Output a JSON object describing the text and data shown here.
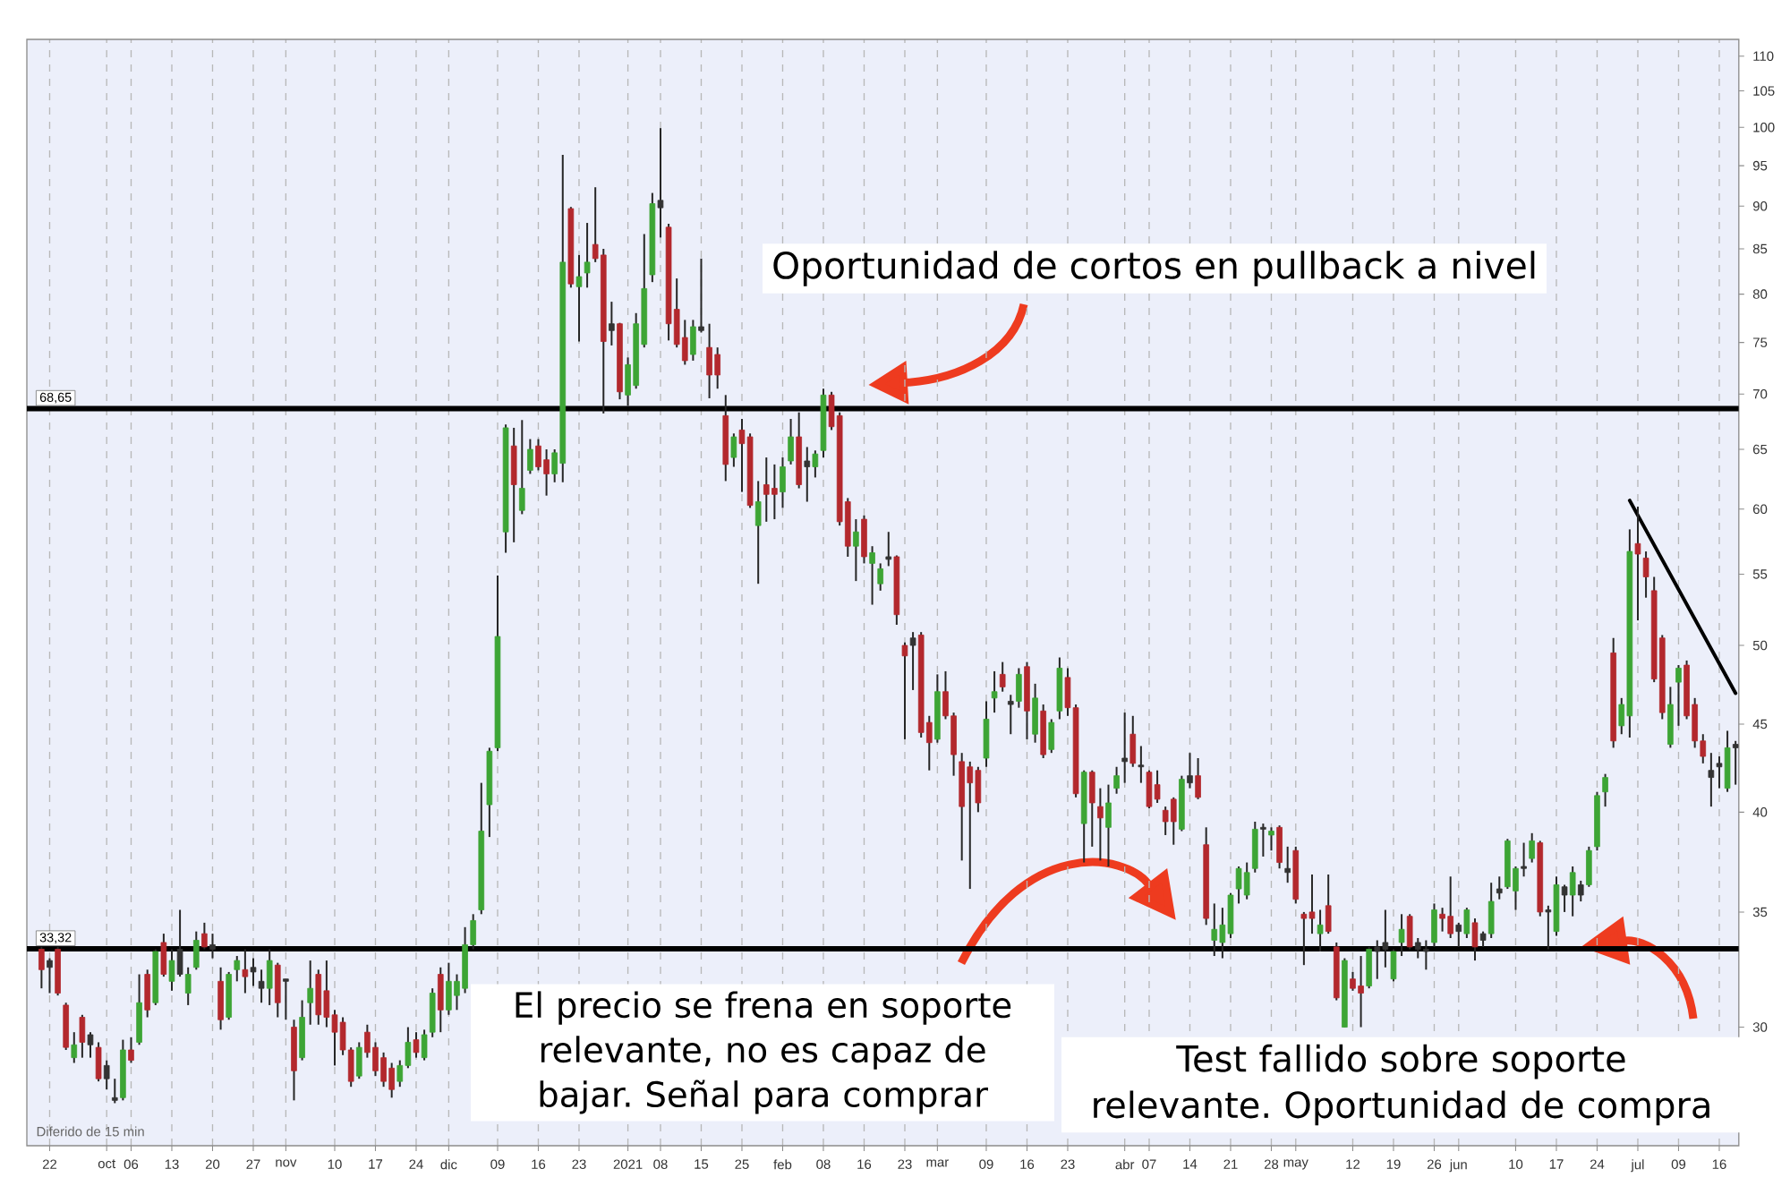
{
  "chart_data": {
    "type": "candlestick",
    "categories": [
      null,
      "22",
      null,
      null,
      null,
      null,
      null,
      null,
      "oct",
      null,
      null,
      "06",
      null,
      null,
      null,
      null,
      "13",
      null,
      null,
      null,
      null,
      "20",
      null,
      null,
      null,
      null,
      "27",
      null,
      null,
      null,
      "nov",
      null,
      null,
      null,
      null,
      null,
      "10",
      null,
      null,
      null,
      null,
      "17",
      null,
      null,
      null,
      null,
      "24",
      null,
      null,
      null,
      "dic",
      null,
      null,
      null,
      null,
      null,
      "09",
      null,
      null,
      null,
      null,
      "16",
      null,
      null,
      null,
      null,
      "23",
      null,
      null,
      null,
      null,
      null,
      "2021",
      null,
      null,
      null,
      "08",
      null,
      null,
      null,
      null,
      "15",
      null,
      null,
      null,
      null,
      "25",
      null,
      null,
      null,
      null,
      "feb",
      null,
      null,
      null,
      null,
      "08",
      null,
      null,
      null,
      null,
      "16",
      null,
      null,
      null,
      null,
      "23",
      null,
      null,
      null,
      "mar",
      null,
      null,
      null,
      null,
      null,
      "09",
      null,
      null,
      null,
      null,
      "16",
      null,
      null,
      null,
      null,
      "23",
      null,
      null,
      null,
      null,
      null,
      null,
      "abr",
      null,
      null,
      "07",
      null,
      null,
      null,
      null,
      "14",
      null,
      null,
      null,
      null,
      "21",
      null,
      null,
      null,
      null,
      "28",
      null,
      null,
      "may",
      null,
      null,
      null,
      null,
      null,
      null,
      "12",
      null,
      null,
      null,
      null,
      "19",
      null,
      null,
      null,
      null,
      "26",
      null,
      null,
      "jun",
      null,
      null,
      null,
      null,
      null,
      null,
      "10",
      null,
      null,
      null,
      null,
      "17",
      null,
      null,
      null,
      null,
      "24",
      null,
      null,
      null,
      null,
      "jul",
      null,
      null,
      null,
      null,
      "09",
      null,
      null,
      null,
      null,
      "16",
      null,
      null
    ],
    "ohlc": [
      [
        33.3,
        33.4,
        31.6,
        32.4
      ],
      [
        32.5,
        32.9,
        31.4,
        32.8
      ],
      [
        33.3,
        33.4,
        31.3,
        31.4
      ],
      [
        30.9,
        31.0,
        29.1,
        29.2
      ],
      [
        28.8,
        29.8,
        28.6,
        29.3
      ],
      [
        30.4,
        30.5,
        28.8,
        29.4
      ],
      [
        29.7,
        29.8,
        28.8,
        29.3
      ],
      [
        29.2,
        29.4,
        27.9,
        28.0
      ],
      [
        28.5,
        28.7,
        27.6,
        28.0
      ],
      [
        27.3,
        28.0,
        27.1,
        27.2
      ],
      [
        27.3,
        29.5,
        27.2,
        29.1
      ],
      [
        29.1,
        29.6,
        28.6,
        28.7
      ],
      [
        29.4,
        32.2,
        29.3,
        31.0
      ],
      [
        32.2,
        32.4,
        30.4,
        30.7
      ],
      [
        31.0,
        33.3,
        30.9,
        33.2
      ],
      [
        33.6,
        34.0,
        32.1,
        32.2
      ],
      [
        31.9,
        33.3,
        31.5,
        32.8
      ],
      [
        33.3,
        35.1,
        32.1,
        32.2
      ],
      [
        31.4,
        32.5,
        30.9,
        32.2
      ],
      [
        32.5,
        34.1,
        32.4,
        33.7
      ],
      [
        34.0,
        34.5,
        33.3,
        33.4
      ],
      [
        33.5,
        34.0,
        32.9,
        33.3
      ],
      [
        31.9,
        32.5,
        29.9,
        30.3
      ],
      [
        30.4,
        32.3,
        30.3,
        32.2
      ],
      [
        32.4,
        33.0,
        31.9,
        32.8
      ],
      [
        32.4,
        33.3,
        31.4,
        32.1
      ],
      [
        32.5,
        32.9,
        31.7,
        32.3
      ],
      [
        31.9,
        32.4,
        31.0,
        31.6
      ],
      [
        31.6,
        33.3,
        30.9,
        32.8
      ],
      [
        32.6,
        32.7,
        30.4,
        31.0
      ],
      [
        32.0,
        32.0,
        30.3,
        31.9
      ],
      [
        30.0,
        30.3,
        27.2,
        28.3
      ],
      [
        28.8,
        31.1,
        28.7,
        30.4
      ],
      [
        31.0,
        32.8,
        30.1,
        31.6
      ],
      [
        32.2,
        32.4,
        30.1,
        30.5
      ],
      [
        31.5,
        32.8,
        30.0,
        30.4
      ],
      [
        30.5,
        30.7,
        28.5,
        29.8
      ],
      [
        30.2,
        30.4,
        28.9,
        29.1
      ],
      [
        29.1,
        29.2,
        27.7,
        27.9
      ],
      [
        28.1,
        29.4,
        28.0,
        29.2
      ],
      [
        29.8,
        30.1,
        28.8,
        29.0
      ],
      [
        29.2,
        29.4,
        28.1,
        28.3
      ],
      [
        28.8,
        29.0,
        27.7,
        27.9
      ],
      [
        28.4,
        28.6,
        27.3,
        27.6
      ],
      [
        27.9,
        28.7,
        27.7,
        28.5
      ],
      [
        28.5,
        30.0,
        28.4,
        29.4
      ],
      [
        29.5,
        29.8,
        28.8,
        29.0
      ],
      [
        28.8,
        29.9,
        28.7,
        29.7
      ],
      [
        29.8,
        31.6,
        29.6,
        31.4
      ],
      [
        32.2,
        32.5,
        29.8,
        30.7
      ],
      [
        30.7,
        32.7,
        30.5,
        31.9
      ],
      [
        31.3,
        32.2,
        30.7,
        31.9
      ],
      [
        31.6,
        34.3,
        31.4,
        33.5
      ],
      [
        33.5,
        34.9,
        33.3,
        34.6
      ],
      [
        35.1,
        41.6,
        34.9,
        39.0
      ],
      [
        40.4,
        43.6,
        38.7,
        43.4
      ],
      [
        43.6,
        54.9,
        43.4,
        50.6
      ],
      [
        58.2,
        67.2,
        56.6,
        66.9
      ],
      [
        65.3,
        66.9,
        57.4,
        62.0
      ],
      [
        59.9,
        67.6,
        59.6,
        61.7
      ],
      [
        63.2,
        65.9,
        62.9,
        65.0
      ],
      [
        65.3,
        65.9,
        63.2,
        63.5
      ],
      [
        64.1,
        65.0,
        61.1,
        62.9
      ],
      [
        62.9,
        65.0,
        62.2,
        64.7
      ],
      [
        63.8,
        96.4,
        62.2,
        83.5
      ],
      [
        89.7,
        89.9,
        80.7,
        81.1
      ],
      [
        80.8,
        84.3,
        75.1,
        81.9
      ],
      [
        82.3,
        88.0,
        80.7,
        83.5
      ],
      [
        85.5,
        92.3,
        83.5,
        83.9
      ],
      [
        84.3,
        85.0,
        68.2,
        75.1
      ],
      [
        76.2,
        79.2,
        74.7,
        76.9
      ],
      [
        76.9,
        77.0,
        69.5,
        70.2
      ],
      [
        69.9,
        73.5,
        68.9,
        72.8
      ],
      [
        70.8,
        78.0,
        70.5,
        76.9
      ],
      [
        74.8,
        86.7,
        74.5,
        80.6
      ],
      [
        82.1,
        91.6,
        81.3,
        90.3
      ],
      [
        90.7,
        99.9,
        86.3,
        89.8
      ],
      [
        87.5,
        87.9,
        75.2,
        76.9
      ],
      [
        78.4,
        81.7,
        74.5,
        74.8
      ],
      [
        75.5,
        77.3,
        72.8,
        73.2
      ],
      [
        73.8,
        77.3,
        73.2,
        76.6
      ],
      [
        76.6,
        83.9,
        76.0,
        76.2
      ],
      [
        74.5,
        76.9,
        69.6,
        71.8
      ],
      [
        73.8,
        74.5,
        70.5,
        71.8
      ],
      [
        68.0,
        69.9,
        62.3,
        63.7
      ],
      [
        64.3,
        66.4,
        63.5,
        66.1
      ],
      [
        66.7,
        67.7,
        61.4,
        65.5
      ],
      [
        66.1,
        66.4,
        60.1,
        60.3
      ],
      [
        58.7,
        62.3,
        54.3,
        60.6
      ],
      [
        62.0,
        64.3,
        59.0,
        61.2
      ],
      [
        61.7,
        63.7,
        59.2,
        61.2
      ],
      [
        61.4,
        64.3,
        60.1,
        63.5
      ],
      [
        64.0,
        67.7,
        63.7,
        66.1
      ],
      [
        66.1,
        68.3,
        61.7,
        62.0
      ],
      [
        64.0,
        65.2,
        60.6,
        63.5
      ],
      [
        63.5,
        64.9,
        62.6,
        64.6
      ],
      [
        64.9,
        70.5,
        64.3,
        69.9
      ],
      [
        69.9,
        70.2,
        66.7,
        67.0
      ],
      [
        68.0,
        68.3,
        58.7,
        59.0
      ],
      [
        60.6,
        60.9,
        56.3,
        57.1
      ],
      [
        57.1,
        59.2,
        54.5,
        58.2
      ],
      [
        59.2,
        59.5,
        55.8,
        56.3
      ],
      [
        55.8,
        57.1,
        52.8,
        56.6
      ],
      [
        54.3,
        55.8,
        53.8,
        55.4
      ],
      [
        56.3,
        58.2,
        55.6,
        56.1
      ],
      [
        56.3,
        56.4,
        51.4,
        52.1
      ],
      [
        50.0,
        50.2,
        44.1,
        49.3
      ],
      [
        50.0,
        50.9,
        47.1,
        50.5
      ],
      [
        50.7,
        50.9,
        44.2,
        44.5
      ],
      [
        45.1,
        45.5,
        42.3,
        43.9
      ],
      [
        44.1,
        48.1,
        43.9,
        47.0
      ],
      [
        47.0,
        48.3,
        45.3,
        45.5
      ],
      [
        45.5,
        45.7,
        42.0,
        43.2
      ],
      [
        42.8,
        43.3,
        37.5,
        40.3
      ],
      [
        42.5,
        42.8,
        36.1,
        41.6
      ],
      [
        42.3,
        42.5,
        40.0,
        40.5
      ],
      [
        43.0,
        46.4,
        42.5,
        45.3
      ],
      [
        46.6,
        48.3,
        45.7,
        47.0
      ],
      [
        48.1,
        48.9,
        47.0,
        47.3
      ],
      [
        46.4,
        46.8,
        44.4,
        46.2
      ],
      [
        46.4,
        48.5,
        46.0,
        48.1
      ],
      [
        48.6,
        48.9,
        44.1,
        45.8
      ],
      [
        44.4,
        47.5,
        43.9,
        46.6
      ],
      [
        45.8,
        46.2,
        43.0,
        43.2
      ],
      [
        43.5,
        45.3,
        43.3,
        45.1
      ],
      [
        45.8,
        49.2,
        45.3,
        48.5
      ],
      [
        47.9,
        48.5,
        45.5,
        46.0
      ],
      [
        46.0,
        46.2,
        40.8,
        41.0
      ],
      [
        39.4,
        42.3,
        37.4,
        42.2
      ],
      [
        42.2,
        42.3,
        38.2,
        40.5
      ],
      [
        40.3,
        41.3,
        37.5,
        39.7
      ],
      [
        39.2,
        41.5,
        37.2,
        40.5
      ],
      [
        41.3,
        42.5,
        41.0,
        42.0
      ],
      [
        42.8,
        45.7,
        41.6,
        43.0
      ],
      [
        44.4,
        45.5,
        42.5,
        42.7
      ],
      [
        42.6,
        43.7,
        41.6,
        42.5
      ],
      [
        42.2,
        42.3,
        40.2,
        40.3
      ],
      [
        41.5,
        42.3,
        40.5,
        40.7
      ],
      [
        40.1,
        40.3,
        38.8,
        39.5
      ],
      [
        40.7,
        40.8,
        38.3,
        39.5
      ],
      [
        39.1,
        42.0,
        39.0,
        41.8
      ],
      [
        41.6,
        43.3,
        41.3,
        42.0
      ],
      [
        42.0,
        43.0,
        40.7,
        40.8
      ],
      [
        38.3,
        39.2,
        34.4,
        34.7
      ],
      [
        33.7,
        35.4,
        33.0,
        34.2
      ],
      [
        33.6,
        35.2,
        32.9,
        34.4
      ],
      [
        34.0,
        35.9,
        33.8,
        35.8
      ],
      [
        36.1,
        37.2,
        35.4,
        37.1
      ],
      [
        35.8,
        37.4,
        35.6,
        36.9
      ],
      [
        37.1,
        39.5,
        36.9,
        39.1
      ],
      [
        39.1,
        39.4,
        37.7,
        39.2
      ],
      [
        38.8,
        39.2,
        38.0,
        39.0
      ],
      [
        39.2,
        39.3,
        37.1,
        37.4
      ],
      [
        37.1,
        38.2,
        36.4,
        36.9
      ],
      [
        38.0,
        38.2,
        35.4,
        35.6
      ],
      [
        34.9,
        35.0,
        32.6,
        34.7
      ],
      [
        35.0,
        36.8,
        34.0,
        34.7
      ],
      [
        34.0,
        35.1,
        33.2,
        34.4
      ],
      [
        35.3,
        36.8,
        34.0,
        34.1
      ],
      [
        33.4,
        33.6,
        31.1,
        31.2
      ],
      [
        30.0,
        32.9,
        30.0,
        32.8
      ],
      [
        32.0,
        32.3,
        31.5,
        31.6
      ],
      [
        31.7,
        33.0,
        30.0,
        31.4
      ],
      [
        31.7,
        33.4,
        31.6,
        33.3
      ],
      [
        33.2,
        33.7,
        32.0,
        33.4
      ],
      [
        33.3,
        35.1,
        32.5,
        33.6
      ],
      [
        32.0,
        33.3,
        31.9,
        33.2
      ],
      [
        33.6,
        34.9,
        33.0,
        34.2
      ],
      [
        34.8,
        34.9,
        33.3,
        33.4
      ],
      [
        33.6,
        33.8,
        32.9,
        33.3
      ],
      [
        33.3,
        33.7,
        32.4,
        33.2
      ],
      [
        33.6,
        35.4,
        33.4,
        35.1
      ],
      [
        34.9,
        35.2,
        34.1,
        34.7
      ],
      [
        34.8,
        36.7,
        33.8,
        34.0
      ],
      [
        34.1,
        34.5,
        33.4,
        34.4
      ],
      [
        34.0,
        35.2,
        33.8,
        35.1
      ],
      [
        34.5,
        34.7,
        32.8,
        33.4
      ],
      [
        33.7,
        34.1,
        33.4,
        34.0
      ],
      [
        34.0,
        36.4,
        33.8,
        35.5
      ],
      [
        35.9,
        36.7,
        35.6,
        36.1
      ],
      [
        36.2,
        38.6,
        36.1,
        38.5
      ],
      [
        36.0,
        37.2,
        35.1,
        37.1
      ],
      [
        37.1,
        38.4,
        36.7,
        37.2
      ],
      [
        37.6,
        38.9,
        37.4,
        38.5
      ],
      [
        38.4,
        38.5,
        34.8,
        35.0
      ],
      [
        35.0,
        35.3,
        33.3,
        35.1
      ],
      [
        34.1,
        36.7,
        33.9,
        36.3
      ],
      [
        35.8,
        36.3,
        35.0,
        36.2
      ],
      [
        35.8,
        37.2,
        34.8,
        36.9
      ],
      [
        36.3,
        36.5,
        35.5,
        35.8
      ],
      [
        36.3,
        38.2,
        36.2,
        38.0
      ],
      [
        38.2,
        41.1,
        38.0,
        40.9
      ],
      [
        41.1,
        42.1,
        40.3,
        41.9
      ],
      [
        49.5,
        50.5,
        43.6,
        44.0
      ],
      [
        44.9,
        46.6,
        44.4,
        46.2
      ],
      [
        45.5,
        58.4,
        44.2,
        56.7
      ],
      [
        57.3,
        60.2,
        51.7,
        56.5
      ],
      [
        56.2,
        56.7,
        53.3,
        54.8
      ],
      [
        53.8,
        54.8,
        47.6,
        47.8
      ],
      [
        50.5,
        50.7,
        45.3,
        45.7
      ],
      [
        43.8,
        47.3,
        43.6,
        46.2
      ],
      [
        47.6,
        48.7,
        44.9,
        48.5
      ],
      [
        48.7,
        49.0,
        45.3,
        45.5
      ],
      [
        46.2,
        46.6,
        43.6,
        44.0
      ],
      [
        44.0,
        44.4,
        42.7,
        43.1
      ],
      [
        42.3,
        43.3,
        40.3,
        41.9
      ],
      [
        42.5,
        43.1,
        41.3,
        42.7
      ],
      [
        41.3,
        44.6,
        41.1,
        43.6
      ],
      [
        43.6,
        44.0,
        41.5,
        43.8
      ]
    ],
    "colors": [
      "#b3282d",
      "#333333",
      "#b3282d",
      "#b3282d",
      "#3da535",
      "#b3282d",
      "#333333",
      "#b3282d",
      "#333333",
      "#333333",
      "#3da535",
      "#b3282d",
      "#3da535",
      "#b3282d",
      "#3da535",
      "#b3282d",
      "#3da535",
      "#333333",
      "#3da535",
      "#3da535",
      "#b3282d",
      "#333333",
      "#b3282d",
      "#3da535",
      "#3da535",
      "#b3282d",
      "#333333",
      "#333333",
      "#3da535",
      "#b3282d",
      "#333333",
      "#b3282d",
      "#3da535",
      "#3da535",
      "#b3282d",
      "#b3282d",
      "#b3282d",
      "#b3282d",
      "#b3282d",
      "#3da535",
      "#b3282d",
      "#b3282d",
      "#b3282d",
      "#b3282d",
      "#3da535",
      "#3da535",
      "#b3282d",
      "#3da535",
      "#3da535",
      "#b3282d",
      "#3da535",
      "#3da535",
      "#3da535",
      "#3da535",
      "#3da535",
      "#3da535",
      "#3da535",
      "#3da535",
      "#b3282d",
      "#3da535",
      "#3da535",
      "#b3282d",
      "#b3282d",
      "#3da535",
      "#3da535",
      "#b3282d",
      "#3da535",
      "#3da535",
      "#b3282d",
      "#b3282d",
      "#333333",
      "#b3282d",
      "#3da535",
      "#3da535",
      "#3da535",
      "#3da535",
      "#333333",
      "#b3282d",
      "#b3282d",
      "#b3282d",
      "#3da535",
      "#333333",
      "#b3282d",
      "#b3282d",
      "#b3282d",
      "#3da535",
      "#b3282d",
      "#b3282d",
      "#3da535",
      "#b3282d",
      "#b3282d",
      "#3da535",
      "#3da535",
      "#b3282d",
      "#333333",
      "#3da535",
      "#3da535",
      "#b3282d",
      "#b3282d",
      "#b3282d",
      "#3da535",
      "#b3282d",
      "#3da535",
      "#3da535",
      "#333333",
      "#b3282d",
      "#b3282d",
      "#333333",
      "#b3282d",
      "#b3282d",
      "#3da535",
      "#b3282d",
      "#b3282d",
      "#b3282d",
      "#b3282d",
      "#b3282d",
      "#3da535",
      "#3da535",
      "#b3282d",
      "#333333",
      "#3da535",
      "#b3282d",
      "#3da535",
      "#b3282d",
      "#3da535",
      "#3da535",
      "#b3282d",
      "#b3282d",
      "#3da535",
      "#b3282d",
      "#b3282d",
      "#3da535",
      "#3da535",
      "#333333",
      "#b3282d",
      "#333333",
      "#b3282d",
      "#b3282d",
      "#b3282d",
      "#b3282d",
      "#3da535",
      "#333333",
      "#b3282d",
      "#b3282d",
      "#3da535",
      "#3da535",
      "#3da535",
      "#3da535",
      "#3da535",
      "#3da535",
      "#333333",
      "#3da535",
      "#b3282d",
      "#333333",
      "#b3282d",
      "#b3282d",
      "#b3282d",
      "#3da535",
      "#b3282d",
      "#b3282d",
      "#3da535",
      "#b3282d",
      "#b3282d",
      "#3da535",
      "#333333",
      "#333333",
      "#3da535",
      "#3da535",
      "#b3282d",
      "#333333",
      "#333333",
      "#3da535",
      "#b3282d",
      "#b3282d",
      "#333333",
      "#3da535",
      "#b3282d",
      "#333333",
      "#3da535",
      "#333333",
      "#3da535",
      "#3da535",
      "#333333",
      "#3da535",
      "#b3282d",
      "#333333",
      "#3da535",
      "#333333",
      "#3da535",
      "#333333",
      "#3da535",
      "#3da535",
      "#3da535",
      "#b3282d",
      "#3da535",
      "#3da535",
      "#b3282d",
      "#b3282d",
      "#b3282d",
      "#b3282d",
      "#3da535",
      "#3da535",
      "#b3282d",
      "#b3282d",
      "#b3282d",
      "#333333",
      "#333333",
      "#3da535",
      "#333333"
    ],
    "series": [
      {
        "type": "line",
        "color": "#000000",
        "values": [
          null,
          null,
          null,
          null,
          null,
          null,
          null,
          null,
          null,
          null,
          null,
          null,
          null,
          null,
          null,
          null,
          null,
          null,
          null,
          null,
          null,
          null,
          null,
          null,
          null,
          null,
          null,
          null,
          null,
          null,
          null,
          null,
          null,
          null,
          null,
          null,
          null,
          null,
          null,
          null,
          null,
          null,
          null,
          null,
          null,
          null,
          null,
          null,
          null,
          null,
          null,
          null,
          null,
          null,
          null,
          null,
          null,
          null,
          null,
          null,
          null,
          null,
          null,
          null,
          null,
          null,
          null,
          null,
          null,
          null,
          null,
          null,
          null,
          null,
          null,
          null,
          null,
          null,
          null,
          null,
          null,
          null,
          null,
          null,
          null,
          null,
          null,
          null,
          null,
          null,
          null,
          null,
          null,
          null,
          null,
          null,
          null,
          null,
          null,
          null,
          null,
          null,
          null,
          null,
          null,
          null,
          null,
          null,
          null,
          null,
          null,
          null,
          null,
          null,
          null,
          null,
          null,
          null,
          null,
          null,
          null,
          null,
          null,
          null,
          null,
          null,
          null,
          null,
          null,
          null,
          null,
          null,
          null,
          null,
          null,
          null,
          null,
          null,
          null,
          null,
          null,
          null,
          null,
          null,
          null,
          null,
          null,
          null,
          null,
          null,
          null,
          null,
          null,
          null,
          null,
          null,
          null,
          null,
          null,
          null,
          null,
          null,
          null,
          null,
          null,
          null,
          null,
          null,
          null,
          null,
          null,
          null,
          null,
          null,
          null,
          null,
          null,
          null,
          null,
          null,
          null,
          null,
          null,
          null,
          null,
          null,
          null,
          null,
          null,
          null,
          null,
          null,
          null,
          null,
          null,
          60.7,
          null,
          null,
          null,
          null,
          null,
          null,
          null,
          null,
          null,
          null,
          null,
          null,
          46.9
        ]
      }
    ],
    "ylim": [
      25.6,
      112.5
    ],
    "yticks": [
      30,
      35,
      40,
      45,
      50,
      55,
      60,
      65,
      70,
      75,
      80,
      85,
      90,
      95,
      100,
      105,
      110
    ],
    "log": true,
    "grid": "x",
    "ref_lines": [
      {
        "axis": "y",
        "value": 68.65,
        "label": "68,65",
        "color": "#000000"
      },
      {
        "axis": "y",
        "value": 33.32,
        "label": "33,32",
        "color": "#000000"
      }
    ],
    "annotations": [
      "Oportunidad de cortos en pullback a nivel",
      "El precio se frena en soporte relevante, no es capaz de bajar. Señal para comprar",
      "Test fallido sobre soporte relevante. Oportunidad de compra",
      "Diferido de 15 min"
    ]
  }
}
